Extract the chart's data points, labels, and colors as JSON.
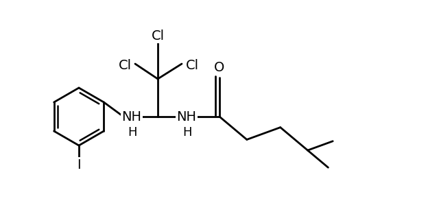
{
  "bg_color": "#ffffff",
  "line_color": "#000000",
  "line_width": 2.0,
  "font_size": 14,
  "figsize": [
    6.4,
    3.25
  ],
  "dpi": 100,
  "xlim": [
    0,
    6.4
  ],
  "ylim": [
    0,
    3.25
  ]
}
